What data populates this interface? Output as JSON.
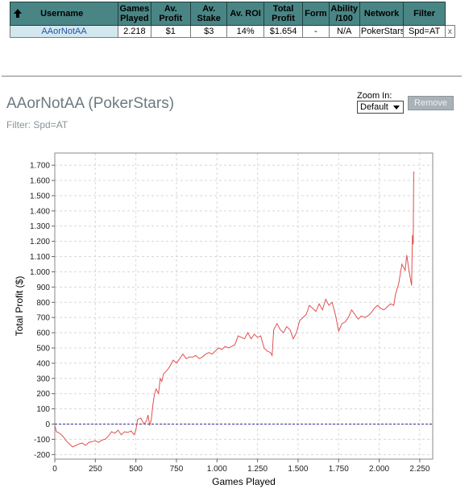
{
  "table": {
    "headers": [
      {
        "key": "username",
        "label": "Username"
      },
      {
        "key": "games",
        "label": "Games Played"
      },
      {
        "key": "avprofit",
        "label": "Av. Profit"
      },
      {
        "key": "avstake",
        "label": "Av. Stake"
      },
      {
        "key": "avroi",
        "label": "Av. ROI"
      },
      {
        "key": "total",
        "label": "Total Profit"
      },
      {
        "key": "form",
        "label": "Form"
      },
      {
        "key": "ability",
        "label": "Ability /100"
      },
      {
        "key": "network",
        "label": "Network"
      },
      {
        "key": "filter",
        "label": "Filter"
      }
    ],
    "row": {
      "username": "AAorNotAA",
      "games": "2.218",
      "avprofit": "$1",
      "avstake": "$3",
      "avroi": "14%",
      "total": "$1.654",
      "form": "-",
      "ability": "N/A",
      "network": "PokerStars",
      "filter": "Spd=AT",
      "close": "x"
    }
  },
  "player_title": "AAorNotAA (PokerStars)",
  "filter_text": "Filter: Spd=AT",
  "zoom": {
    "label": "Zoom In:",
    "value": "Default"
  },
  "remove_label": "Remove",
  "colors": {
    "header_bg": "#4a8585",
    "line": "#e05050",
    "zero_line": "#3030a0",
    "grid": "#d8d8d8"
  },
  "chart_data": {
    "type": "line",
    "xlabel": "Games Played",
    "ylabel": "Total Profit ($)",
    "xlim": [
      0,
      2330
    ],
    "ylim": [
      -230,
      1780
    ],
    "xticks": [
      {
        "v": 0,
        "label": "0"
      },
      {
        "v": 250,
        "label": "250"
      },
      {
        "v": 500,
        "label": "500"
      },
      {
        "v": 750,
        "label": "750"
      },
      {
        "v": 1000,
        "label": "1.000"
      },
      {
        "v": 1250,
        "label": "1.250"
      },
      {
        "v": 1500,
        "label": "1.500"
      },
      {
        "v": 1750,
        "label": "1.750"
      },
      {
        "v": 2000,
        "label": "2.000"
      },
      {
        "v": 2250,
        "label": "2.250"
      }
    ],
    "yticks": [
      {
        "v": -200,
        "label": "-200"
      },
      {
        "v": -100,
        "label": "-100"
      },
      {
        "v": 0,
        "label": "0"
      },
      {
        "v": 100,
        "label": "100"
      },
      {
        "v": 200,
        "label": "200"
      },
      {
        "v": 300,
        "label": "300"
      },
      {
        "v": 400,
        "label": "400"
      },
      {
        "v": 500,
        "label": "500"
      },
      {
        "v": 600,
        "label": "600"
      },
      {
        "v": 700,
        "label": "700"
      },
      {
        "v": 800,
        "label": "800"
      },
      {
        "v": 900,
        "label": "900"
      },
      {
        "v": 1000,
        "label": "1.000"
      },
      {
        "v": 1100,
        "label": "1.100"
      },
      {
        "v": 1200,
        "label": "1.200"
      },
      {
        "v": 1300,
        "label": "1.300"
      },
      {
        "v": 1400,
        "label": "1.400"
      },
      {
        "v": 1500,
        "label": "1.500"
      },
      {
        "v": 1600,
        "label": "1.600"
      },
      {
        "v": 1700,
        "label": "1.700"
      }
    ],
    "series": [
      {
        "values": [
          [
            0,
            -10
          ],
          [
            10,
            -50
          ],
          [
            30,
            -60
          ],
          [
            50,
            -80
          ],
          [
            70,
            -110
          ],
          [
            90,
            -130
          ],
          [
            110,
            -150
          ],
          [
            130,
            -140
          ],
          [
            150,
            -130
          ],
          [
            170,
            -125
          ],
          [
            190,
            -140
          ],
          [
            210,
            -120
          ],
          [
            230,
            -115
          ],
          [
            250,
            -110
          ],
          [
            270,
            -120
          ],
          [
            290,
            -105
          ],
          [
            310,
            -100
          ],
          [
            330,
            -80
          ],
          [
            350,
            -50
          ],
          [
            370,
            -60
          ],
          [
            390,
            -40
          ],
          [
            410,
            -70
          ],
          [
            430,
            -50
          ],
          [
            450,
            -55
          ],
          [
            470,
            -45
          ],
          [
            490,
            -70
          ],
          [
            500,
            -40
          ],
          [
            510,
            30
          ],
          [
            530,
            40
          ],
          [
            550,
            0
          ],
          [
            565,
            20
          ],
          [
            575,
            60
          ],
          [
            585,
            -10
          ],
          [
            595,
            30
          ],
          [
            605,
            130
          ],
          [
            615,
            200
          ],
          [
            625,
            230
          ],
          [
            640,
            200
          ],
          [
            650,
            300
          ],
          [
            660,
            280
          ],
          [
            670,
            330
          ],
          [
            690,
            350
          ],
          [
            710,
            380
          ],
          [
            730,
            420
          ],
          [
            750,
            400
          ],
          [
            770,
            430
          ],
          [
            790,
            460
          ],
          [
            810,
            430
          ],
          [
            830,
            440
          ],
          [
            850,
            440
          ],
          [
            870,
            450
          ],
          [
            890,
            430
          ],
          [
            910,
            440
          ],
          [
            930,
            460
          ],
          [
            950,
            470
          ],
          [
            970,
            460
          ],
          [
            990,
            480
          ],
          [
            1010,
            500
          ],
          [
            1030,
            490
          ],
          [
            1050,
            510
          ],
          [
            1070,
            500
          ],
          [
            1090,
            510
          ],
          [
            1110,
            520
          ],
          [
            1130,
            580
          ],
          [
            1150,
            570
          ],
          [
            1170,
            560
          ],
          [
            1190,
            600
          ],
          [
            1210,
            560
          ],
          [
            1230,
            590
          ],
          [
            1250,
            570
          ],
          [
            1270,
            580
          ],
          [
            1290,
            500
          ],
          [
            1310,
            480
          ],
          [
            1330,
            470
          ],
          [
            1340,
            450
          ],
          [
            1350,
            620
          ],
          [
            1370,
            660
          ],
          [
            1390,
            620
          ],
          [
            1410,
            600
          ],
          [
            1430,
            640
          ],
          [
            1450,
            620
          ],
          [
            1470,
            560
          ],
          [
            1490,
            600
          ],
          [
            1510,
            680
          ],
          [
            1530,
            700
          ],
          [
            1550,
            720
          ],
          [
            1570,
            780
          ],
          [
            1590,
            760
          ],
          [
            1610,
            740
          ],
          [
            1630,
            790
          ],
          [
            1650,
            750
          ],
          [
            1670,
            820
          ],
          [
            1690,
            780
          ],
          [
            1710,
            800
          ],
          [
            1730,
            720
          ],
          [
            1750,
            610
          ],
          [
            1770,
            660
          ],
          [
            1790,
            670
          ],
          [
            1810,
            700
          ],
          [
            1830,
            750
          ],
          [
            1850,
            720
          ],
          [
            1870,
            690
          ],
          [
            1890,
            710
          ],
          [
            1910,
            700
          ],
          [
            1930,
            710
          ],
          [
            1950,
            730
          ],
          [
            1970,
            760
          ],
          [
            1990,
            780
          ],
          [
            2010,
            760
          ],
          [
            2030,
            750
          ],
          [
            2050,
            770
          ],
          [
            2070,
            790
          ],
          [
            2090,
            780
          ],
          [
            2100,
            850
          ],
          [
            2120,
            920
          ],
          [
            2140,
            1050
          ],
          [
            2160,
            1010
          ],
          [
            2170,
            1110
          ],
          [
            2185,
            1000
          ],
          [
            2200,
            910
          ],
          [
            2205,
            1240
          ],
          [
            2210,
            1180
          ],
          [
            2213,
            1654
          ],
          [
            2218,
            1654
          ]
        ]
      }
    ]
  }
}
